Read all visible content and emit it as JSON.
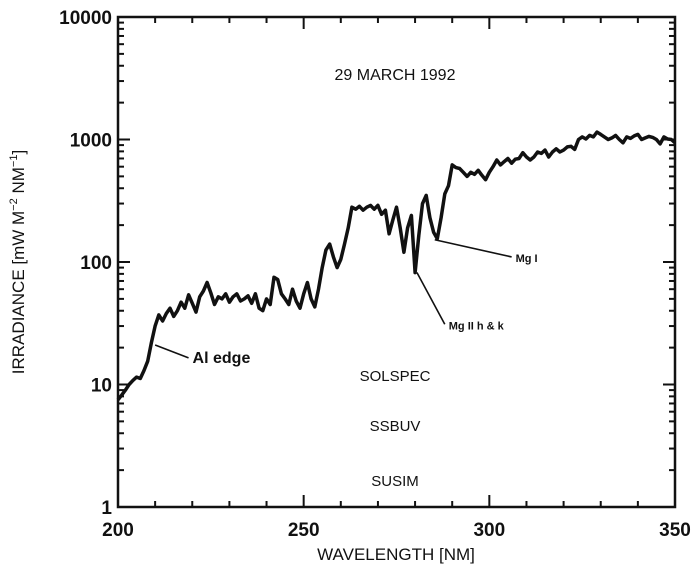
{
  "chart_data": {
    "type": "line",
    "title": "29 MARCH 1992",
    "xlabel": "WAVELENGTH [NM]",
    "ylabel": "IRRADIANCE [mW M",
    "ylabel_sup1": "−2",
    "ylabel_mid": " NM",
    "ylabel_sup2": "−1",
    "ylabel_end": "]",
    "x_scale": "linear",
    "y_scale": "log",
    "xlim": [
      200,
      350
    ],
    "ylim": [
      1,
      10000
    ],
    "grid": false,
    "x_ticks": [
      {
        "value": 200,
        "label": "200"
      },
      {
        "value": 250,
        "label": "250"
      },
      {
        "value": 300,
        "label": "300"
      },
      {
        "value": 350,
        "label": "350"
      }
    ],
    "y_ticks": [
      {
        "value": 1,
        "label": "1"
      },
      {
        "value": 10,
        "label": "10"
      },
      {
        "value": 100,
        "label": "100"
      },
      {
        "value": 1000,
        "label": "1000"
      },
      {
        "value": 10000,
        "label": "10000"
      }
    ],
    "series": [
      {
        "x": [
          200,
          201,
          202,
          203,
          204,
          205,
          206,
          207,
          208,
          209,
          210,
          211,
          212,
          213,
          214,
          215,
          216,
          217,
          218,
          219,
          220,
          221,
          222,
          223,
          224,
          225,
          226,
          227,
          228,
          229,
          230,
          231,
          232,
          233,
          234,
          235,
          236,
          237,
          238,
          239,
          240,
          241,
          242,
          243,
          244,
          245,
          246,
          247,
          248,
          249,
          250,
          251,
          252,
          253,
          254,
          255,
          256,
          257,
          258,
          259,
          260,
          261,
          262,
          263,
          264,
          265,
          266,
          267,
          268,
          269,
          270,
          271,
          272,
          273,
          274,
          275,
          276,
          277,
          278,
          279,
          280,
          281,
          282,
          283,
          284,
          285,
          286,
          287,
          288,
          289,
          290,
          291,
          292,
          293,
          294,
          295,
          296,
          297,
          298,
          299,
          300,
          301,
          302,
          303,
          304,
          305,
          306,
          307,
          308,
          309,
          310,
          311,
          312,
          313,
          314,
          315,
          316,
          317,
          318,
          319,
          320,
          321,
          322,
          323,
          324,
          325,
          326,
          327,
          328,
          329,
          330,
          331,
          332,
          333,
          334,
          335,
          336,
          337,
          338,
          339,
          340,
          341,
          342,
          343,
          344,
          345,
          346,
          347,
          348,
          349,
          350
        ],
        "y": [
          7.5,
          8.2,
          9.0,
          10.0,
          10.8,
          11.5,
          11.2,
          13.0,
          15.5,
          22.0,
          30.0,
          37.0,
          33.0,
          38.0,
          42.0,
          36.0,
          40.0,
          47.0,
          42.0,
          54.0,
          46.0,
          39.0,
          52.0,
          58.0,
          68.0,
          56.0,
          45.0,
          52.0,
          50.0,
          55.0,
          47.0,
          52.0,
          55.0,
          48.0,
          50.0,
          53.0,
          46.0,
          55.0,
          42.0,
          40.0,
          50.0,
          45.0,
          75.0,
          72.0,
          55.0,
          50.0,
          45.0,
          60.0,
          48.0,
          42.0,
          55.0,
          68.0,
          50.0,
          43.0,
          60.0,
          90.0,
          125.0,
          140.0,
          110.0,
          90.0,
          105.0,
          140.0,
          190.0,
          280.0,
          270.0,
          285.0,
          265.0,
          280.0,
          290.0,
          270.0,
          290.0,
          245.0,
          265.0,
          170.0,
          220.0,
          280.0,
          190.0,
          120.0,
          190.0,
          240.0,
          82.0,
          165.0,
          300.0,
          350.0,
          230.0,
          175.0,
          155.0,
          230.0,
          360.0,
          420.0,
          620.0,
          590.0,
          580.0,
          540.0,
          500.0,
          540.0,
          520.0,
          560.0,
          510.0,
          470.0,
          540.0,
          600.0,
          680.0,
          620.0,
          660.0,
          700.0,
          640.0,
          690.0,
          700.0,
          780.0,
          720.0,
          680.0,
          720.0,
          790.0,
          770.0,
          820.0,
          720.0,
          790.0,
          840.0,
          790.0,
          820.0,
          870.0,
          880.0,
          830.0,
          1000.0,
          1050.0,
          1010.0,
          1080.0,
          1050.0,
          1150.0,
          1100.0,
          1050.0,
          1000.0,
          1030.0,
          1080.0,
          1000.0,
          940.0,
          1050.0,
          1020.0,
          1070.0,
          1100.0,
          1000.0,
          1030.0,
          1060.0,
          1040.0,
          1000.0,
          920.0,
          1050.0,
          1010.0,
          1000.0,
          940.0
        ]
      }
    ],
    "annotations": [
      {
        "id": "al-edge",
        "text": "Al edge",
        "x": 210,
        "y": 21,
        "label_x": 219,
        "label_y": 16.5,
        "size": 16
      },
      {
        "id": "mg-ii",
        "text": "Mg II h & k",
        "x": 280.5,
        "y": 82,
        "label_x": 288,
        "label_y": 31,
        "size": 11
      },
      {
        "id": "mg-i",
        "text": "Mg I",
        "x": 285.3,
        "y": 152,
        "label_x": 306,
        "label_y": 110,
        "size": 11
      }
    ],
    "labels": {
      "solspec": "SOLSPEC",
      "ssbuv": "SSBUV",
      "susim": "SUSIM"
    }
  }
}
